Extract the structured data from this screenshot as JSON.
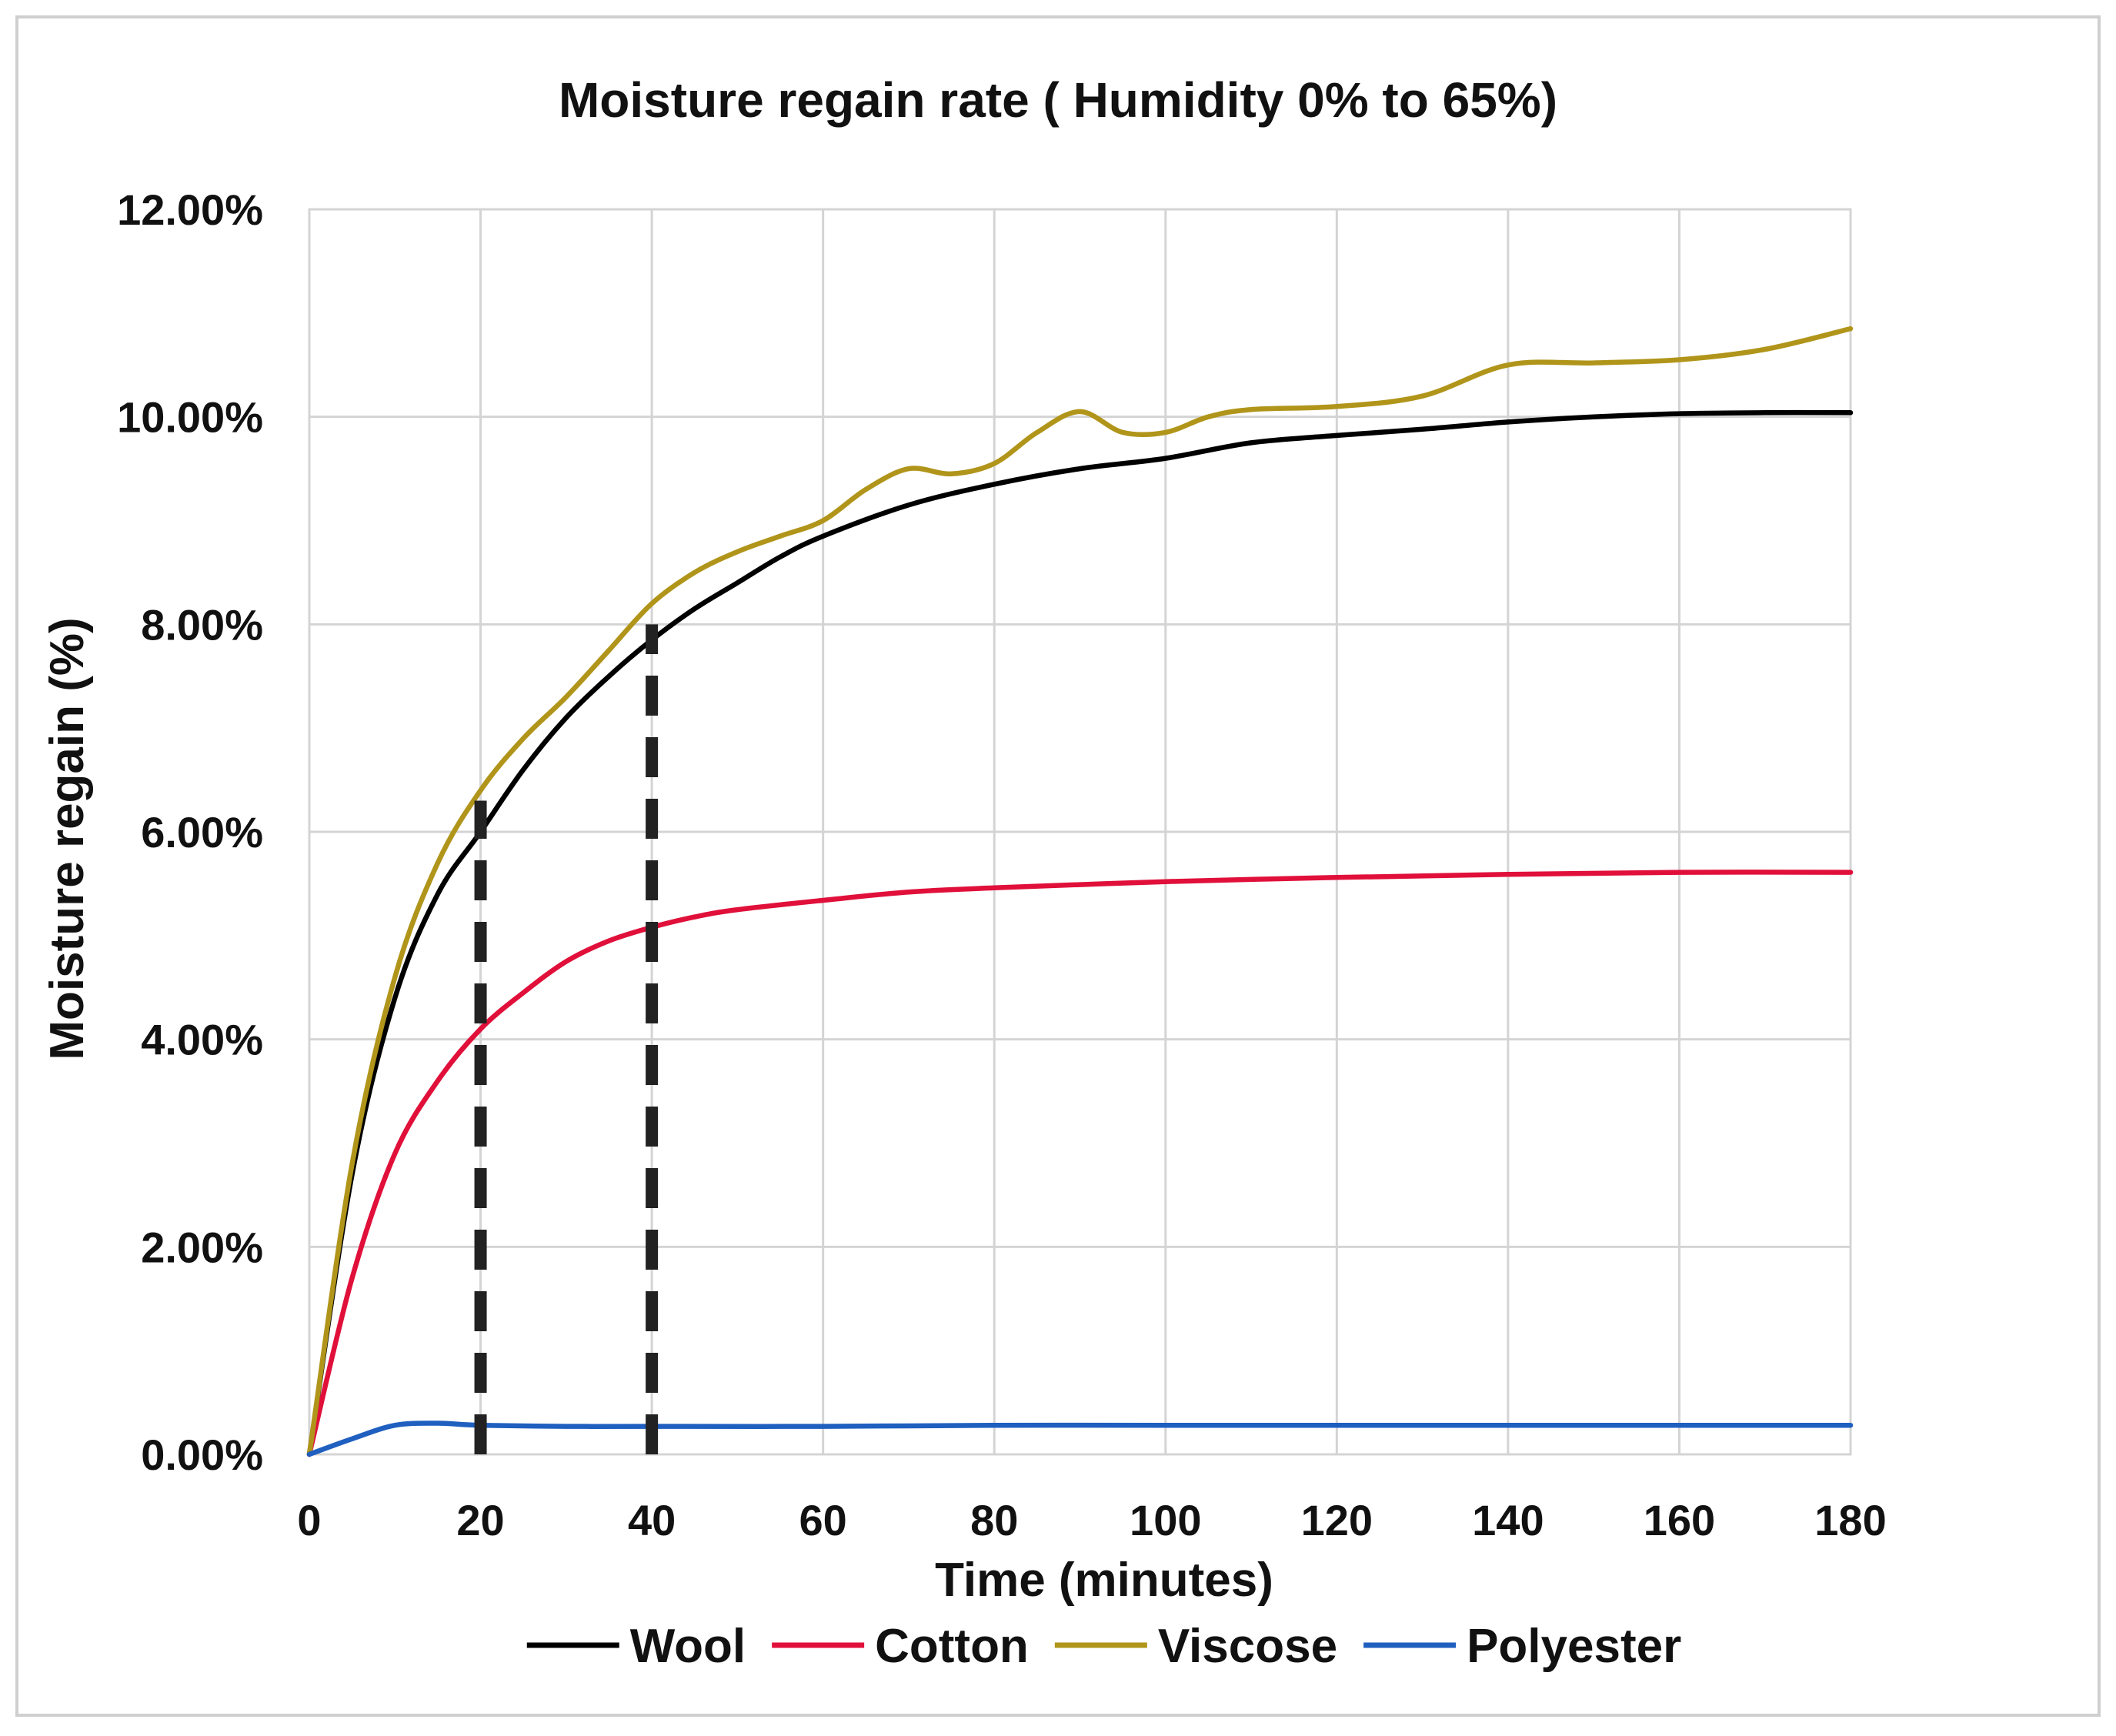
{
  "chart_data": {
    "type": "line",
    "title": "Moisture regain rate ( Humidity 0% to 65%)",
    "xlabel": "Time (minutes)",
    "ylabel": "Moisture regain (%)",
    "xlim": [
      0,
      180
    ],
    "ylim": [
      0,
      12
    ],
    "x_ticks": [
      0,
      20,
      40,
      60,
      80,
      100,
      120,
      140,
      160,
      180
    ],
    "x_tick_labels": [
      "0",
      "20",
      "40",
      "60",
      "80",
      "100",
      "120",
      "140",
      "160",
      "180"
    ],
    "y_ticks": [
      0,
      2,
      4,
      6,
      8,
      10,
      12
    ],
    "y_tick_labels": [
      "0.00%",
      "2.00%",
      "4.00%",
      "6.00%",
      "8.00%",
      "10.00%",
      "12.00%"
    ],
    "grid": true,
    "legend_position": "bottom",
    "reference_lines": [
      {
        "x": 20,
        "y_from": 0,
        "y_to": 6.3,
        "style": "dashed",
        "color": "#222222"
      },
      {
        "x": 40,
        "y_from": 0,
        "y_to": 8.0,
        "style": "dashed",
        "color": "#222222"
      }
    ],
    "series": [
      {
        "name": "Wool",
        "color": "#000000",
        "x": [
          0,
          5,
          10,
          15,
          20,
          25,
          30,
          35,
          40,
          45,
          50,
          55,
          60,
          70,
          80,
          90,
          100,
          110,
          120,
          130,
          140,
          150,
          160,
          170,
          180
        ],
        "y": [
          0,
          2.7,
          4.4,
          5.4,
          6.0,
          6.6,
          7.1,
          7.5,
          7.85,
          8.15,
          8.4,
          8.65,
          8.85,
          9.15,
          9.35,
          9.5,
          9.6,
          9.75,
          9.82,
          9.88,
          9.95,
          10.0,
          10.03,
          10.04,
          10.04
        ]
      },
      {
        "name": "Cotton",
        "color": "#e0103a",
        "x": [
          0,
          5,
          10,
          15,
          20,
          25,
          30,
          35,
          40,
          45,
          50,
          60,
          70,
          80,
          100,
          120,
          140,
          160,
          180
        ],
        "y": [
          0,
          1.7,
          2.9,
          3.6,
          4.1,
          4.45,
          4.75,
          4.95,
          5.08,
          5.18,
          5.25,
          5.34,
          5.42,
          5.46,
          5.52,
          5.56,
          5.59,
          5.61,
          5.61
        ]
      },
      {
        "name": "Viscose",
        "color": "#b0951a",
        "x": [
          0,
          5,
          10,
          15,
          20,
          25,
          30,
          35,
          40,
          45,
          50,
          55,
          60,
          65,
          70,
          75,
          80,
          85,
          90,
          95,
          100,
          105,
          110,
          120,
          130,
          140,
          150,
          160,
          170,
          180
        ],
        "y": [
          0,
          2.8,
          4.6,
          5.7,
          6.4,
          6.9,
          7.3,
          7.75,
          8.2,
          8.5,
          8.7,
          8.85,
          9.0,
          9.3,
          9.5,
          9.45,
          9.55,
          9.85,
          10.05,
          9.85,
          9.85,
          10.0,
          10.07,
          10.1,
          10.2,
          10.5,
          10.52,
          10.55,
          10.65,
          10.85
        ]
      },
      {
        "name": "Polyester",
        "color": "#1f5fbf",
        "x": [
          0,
          5,
          10,
          15,
          20,
          30,
          40,
          60,
          80,
          100,
          120,
          140,
          160,
          180
        ],
        "y": [
          0,
          0.15,
          0.28,
          0.3,
          0.28,
          0.27,
          0.27,
          0.27,
          0.28,
          0.28,
          0.28,
          0.28,
          0.28,
          0.28
        ]
      }
    ]
  }
}
